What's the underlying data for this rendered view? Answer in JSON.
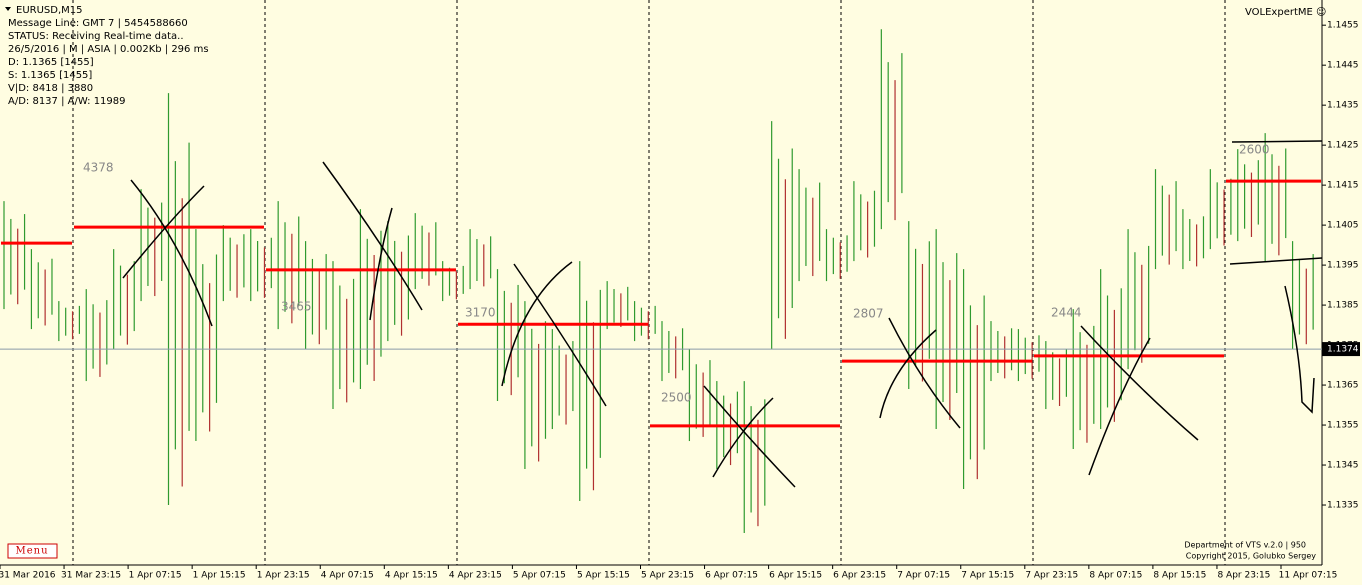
{
  "chart_data": {
    "type": "range-bar",
    "title": "EURUSD,M15",
    "info_lines": [
      "Message Line: GMT 7 | 5454588660",
      "STATUS:  Receiving Real-time data..",
      "26/5/2016 | M | ASIA | 0.002Kb | 296 ms",
      "D: 1.1365  [1455]",
      "S: 1.1365  [1455]",
      "V|D: 8418 | 3880",
      "A/D: 8137 | A/W: 11989"
    ],
    "indicator": "VOLExpertME ☺",
    "menu": "Menu",
    "footer": [
      "Department of VTS  v.2.0 | 950",
      "Copyright 2015, Golubko Sergey"
    ],
    "categories": [
      "31 Mar 2016",
      "31 Mar 23:15",
      "1 Apr 07:15",
      "1 Apr 15:15",
      "1 Apr 23:15",
      "4 Apr 07:15",
      "4 Apr 15:15",
      "4 Apr 23:15",
      "5 Apr 07:15",
      "5 Apr 15:15",
      "5 Apr 23:15",
      "6 Apr 07:15",
      "6 Apr 15:15",
      "6 Apr 23:15",
      "7 Apr 07:15",
      "7 Apr 15:15",
      "7 Apr 23:15",
      "8 Apr 07:15",
      "8 Apr 15:15",
      "8 Apr 23:15",
      "11 Apr 07:15"
    ],
    "ylim": [
      1.132,
      1.14613
    ],
    "yticks": [
      1.1335,
      1.1345,
      1.1355,
      1.1365,
      1.1375,
      1.1385,
      1.1395,
      1.1405,
      1.1415,
      1.1425,
      1.1435,
      1.1445,
      1.1455
    ],
    "last_price": 1.1374,
    "bars": {
      "color": "#2f9a2f",
      "high": [
        1.1411,
        1.1399,
        1.1386,
        1.1389,
        1.1399,
        1.1414,
        1.1438,
        1.1404,
        1.1405,
        1.1404,
        1.1411,
        1.1401,
        1.1396,
        1.1409,
        1.1406,
        1.1408,
        1.1396,
        1.1404,
        1.1394,
        1.1386,
        1.1379,
        1.1396,
        1.1391,
        1.1386,
        1.1381,
        1.1374,
        1.1366,
        1.1366,
        1.1431,
        1.1419,
        1.1404,
        1.1416,
        1.1454,
        1.1406,
        1.1404,
        1.1394,
        1.1381,
        1.1379,
        1.1376,
        1.1384,
        1.1394,
        1.1404,
        1.1419,
        1.1409,
        1.1419,
        1.1424,
        1.1428,
        1.1401
      ],
      "low": [
        1.1384,
        1.1379,
        1.1376,
        1.1366,
        1.1374,
        1.1386,
        1.1335,
        1.1351,
        1.1386,
        1.1386,
        1.1379,
        1.1374,
        1.1359,
        1.1364,
        1.1376,
        1.1389,
        1.1386,
        1.1389,
        1.1361,
        1.1344,
        1.1354,
        1.1336,
        1.1379,
        1.1376,
        1.1366,
        1.1351,
        1.1344,
        1.1328,
        1.1374,
        1.1391,
        1.1391,
        1.1396,
        1.1404,
        1.1364,
        1.1354,
        1.1339,
        1.1366,
        1.1366,
        1.1359,
        1.1349,
        1.1354,
        1.1369,
        1.1394,
        1.1394,
        1.1399,
        1.1401,
        1.1396,
        1.1374
      ]
    },
    "levels": {
      "color": "#ff0000",
      "values": [
        1.14005,
        1.14045,
        1.13938,
        1.13802,
        1.13548,
        1.1371,
        1.13723,
        1.1416
      ],
      "volumes": [
        null,
        4378,
        3465,
        3170,
        2500,
        2807,
        2444,
        2600
      ]
    }
  }
}
